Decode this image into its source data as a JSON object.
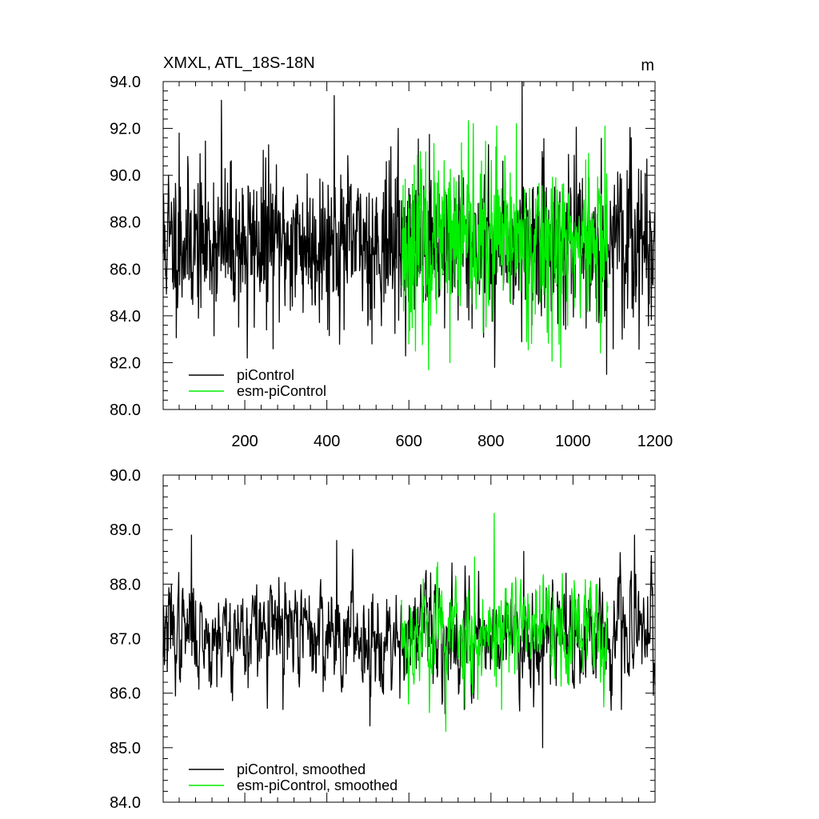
{
  "colors": {
    "piControl": "#000000",
    "esm_piControl": "#00ee00"
  },
  "chart_data": [
    {
      "type": "line",
      "title": "XMXL, ATL_18S-18N",
      "units": "m",
      "xlim": [
        1,
        1200
      ],
      "ylim": [
        80.0,
        94.0
      ],
      "xticks": [
        200,
        400,
        600,
        800,
        1000,
        1200
      ],
      "xtick_labels": [
        "200",
        "400",
        "600",
        "800",
        "1000",
        "1200"
      ],
      "yticks": [
        80.0,
        82.0,
        84.0,
        86.0,
        88.0,
        90.0,
        92.0,
        94.0
      ],
      "ytick_labels": [
        "80.0",
        "82.0",
        "84.0",
        "86.0",
        "88.0",
        "90.0",
        "92.0",
        "94.0"
      ],
      "grid": false,
      "legend": "bottom-left",
      "series": [
        {
          "name": "piControl",
          "color": "#000000",
          "x_range": [
            1,
            1200
          ],
          "mean": 87.1,
          "std": 1.6,
          "noise_seed": 11,
          "peaks": [
            {
              "x": 14,
              "y": 90.0
            },
            {
              "x": 40,
              "y": 91.8
            },
            {
              "x": 143,
              "y": 93.2
            },
            {
              "x": 206,
              "y": 82.2
            },
            {
              "x": 258,
              "y": 91.3
            },
            {
              "x": 418,
              "y": 93.4
            },
            {
              "x": 510,
              "y": 82.8
            },
            {
              "x": 574,
              "y": 92.0
            },
            {
              "x": 876,
              "y": 94.0
            },
            {
              "x": 809,
              "y": 81.8
            },
            {
              "x": 1082,
              "y": 81.5
            },
            {
              "x": 1142,
              "y": 91.6
            },
            {
              "x": 1120,
              "y": 83.0
            }
          ]
        },
        {
          "name": "esm-piControl",
          "color": "#00ee00",
          "x_range": [
            582,
            1085
          ],
          "mean": 87.1,
          "std": 1.7,
          "noise_seed": 23,
          "peaks": [
            {
              "x": 648,
              "y": 81.7
            },
            {
              "x": 757,
              "y": 92.2
            },
            {
              "x": 814,
              "y": 92.1
            },
            {
              "x": 862,
              "y": 92.2
            },
            {
              "x": 970,
              "y": 81.8
            },
            {
              "x": 1078,
              "y": 92.1
            },
            {
              "x": 700,
              "y": 82.0
            },
            {
              "x": 600,
              "y": 82.8
            }
          ]
        }
      ]
    },
    {
      "type": "line",
      "xlim": [
        1,
        1200
      ],
      "ylim": [
        84.0,
        90.0
      ],
      "yticks": [
        84.0,
        85.0,
        86.0,
        87.0,
        88.0,
        89.0,
        90.0
      ],
      "ytick_labels": [
        "84.0",
        "85.0",
        "86.0",
        "87.0",
        "88.0",
        "89.0",
        "90.0"
      ],
      "grid": false,
      "legend": "bottom-left",
      "series": [
        {
          "name": "piControl, smoothed",
          "color": "#000000",
          "x_range": [
            1,
            1200
          ],
          "mean": 87.1,
          "std": 0.55,
          "noise_seed": 37,
          "peaks": [
            {
              "x": 70,
              "y": 88.9
            },
            {
              "x": 208,
              "y": 86.1
            },
            {
              "x": 293,
              "y": 85.7
            },
            {
              "x": 424,
              "y": 88.8
            },
            {
              "x": 505,
              "y": 85.4
            },
            {
              "x": 735,
              "y": 85.7
            },
            {
              "x": 926,
              "y": 85.0
            },
            {
              "x": 1150,
              "y": 88.9
            },
            {
              "x": 1118,
              "y": 85.7
            },
            {
              "x": 880,
              "y": 88.6
            },
            {
              "x": 983,
              "y": 88.2
            }
          ]
        },
        {
          "name": "esm-piControl, smoothed",
          "color": "#00ee00",
          "x_range": [
            582,
            1085
          ],
          "mean": 87.1,
          "std": 0.6,
          "noise_seed": 53,
          "peaks": [
            {
              "x": 808,
              "y": 89.3
            },
            {
              "x": 690,
              "y": 85.3
            },
            {
              "x": 826,
              "y": 85.7
            },
            {
              "x": 670,
              "y": 88.4
            },
            {
              "x": 1058,
              "y": 88.0
            },
            {
              "x": 760,
              "y": 88.5
            }
          ]
        }
      ]
    }
  ]
}
